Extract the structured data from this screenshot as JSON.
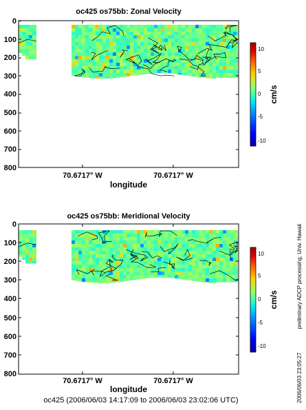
{
  "chart_data": [
    {
      "type": "heatmap",
      "title": "oc425 os75bb: Zonal Velocity",
      "xlabel": "longitude",
      "ylabel": "",
      "xticks": [
        "70.6717° W",
        "70.6717° W"
      ],
      "yticks": [
        0,
        100,
        200,
        300,
        400,
        500,
        600,
        700,
        800
      ],
      "ylim": [
        800,
        0
      ],
      "colorbar": {
        "label": "cm/s",
        "ticks": [
          10,
          5,
          0,
          -5,
          -10
        ],
        "range": [
          -11,
          11
        ]
      },
      "colormap": [
        "#0000a0",
        "#0000ff",
        "#0080ff",
        "#00e0ff",
        "#30ffc0",
        "#80ff80",
        "#e0ff20",
        "#ffc000",
        "#ff6000",
        "#e00000",
        "#a00000"
      ],
      "dominant_value_range": [
        0,
        2
      ],
      "data_extent_depth": [
        30,
        320
      ]
    },
    {
      "type": "heatmap",
      "title": "oc425 os75bb: Meridional Velocity",
      "xlabel": "longitude",
      "ylabel": "",
      "xticks": [
        "70.6717° W",
        "70.6717° W"
      ],
      "yticks": [
        0,
        100,
        200,
        300,
        400,
        500,
        600,
        700,
        800
      ],
      "ylim": [
        800,
        0
      ],
      "colorbar": {
        "label": "cm/s",
        "ticks": [
          10,
          5,
          0,
          -5,
          -10
        ],
        "range": [
          -11,
          11
        ]
      },
      "colormap": [
        "#0000a0",
        "#0000ff",
        "#0080ff",
        "#00e0ff",
        "#30ffc0",
        "#80ff80",
        "#e0ff20",
        "#ffc000",
        "#ff6000",
        "#e00000",
        "#a00000"
      ],
      "dominant_value_range": [
        -1,
        2
      ],
      "data_extent_depth": [
        30,
        320
      ]
    }
  ],
  "footer": "oc425 (2006/06/03 14:17:09 to 2006/06/03 23:02:06 UTC)",
  "side_note": "preliminary ADCP processing,  Univ. Hawaii",
  "timestamp": "2006/06/03 23:05:27"
}
